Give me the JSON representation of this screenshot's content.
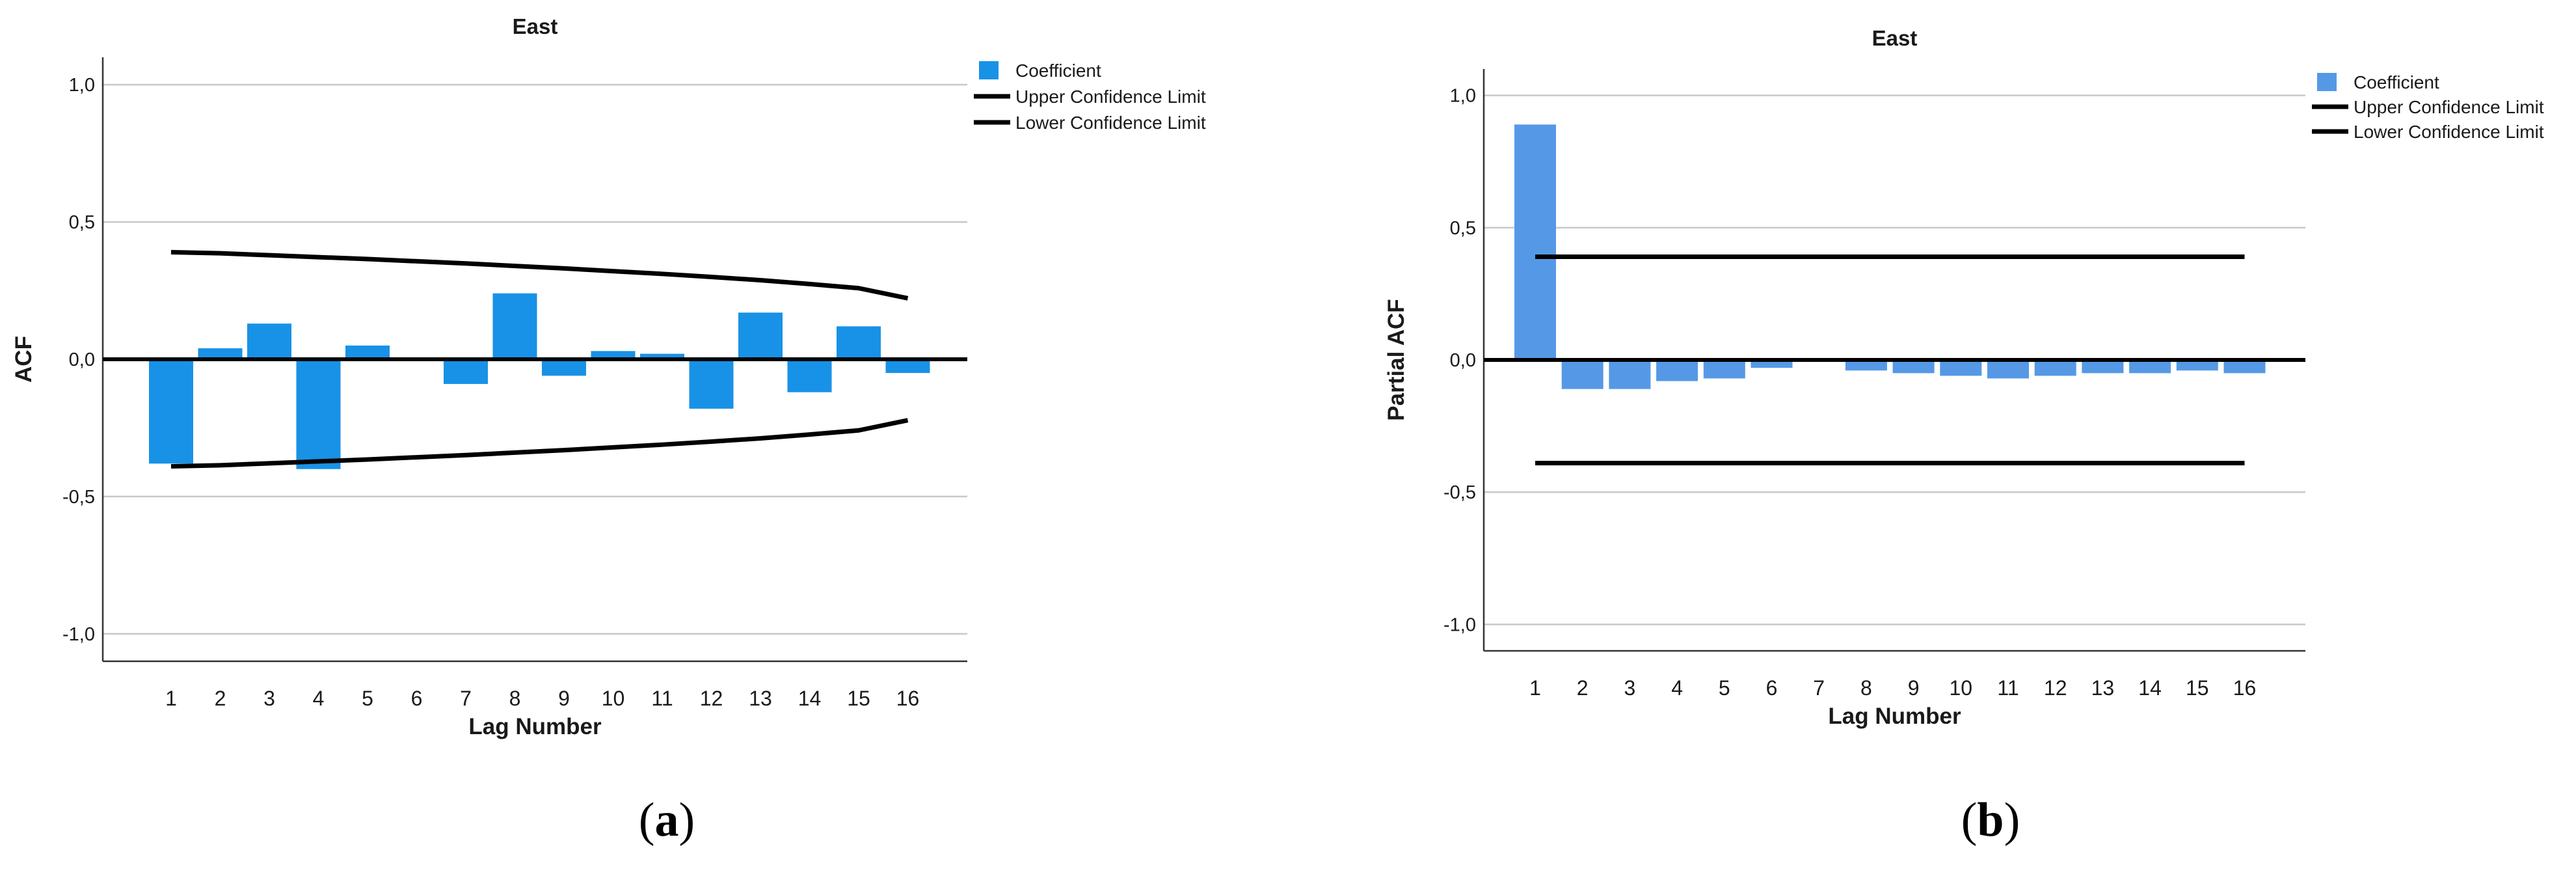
{
  "chart_data": [
    {
      "type": "bar",
      "panel": "(a)",
      "panel_letter": "a",
      "title": "East",
      "xlabel": "Lag Number",
      "ylabel": "ACF",
      "ylim": [
        -1.1,
        1.1
      ],
      "yticks": [
        -1.0,
        -0.5,
        0.0,
        0.5,
        1.0
      ],
      "ytick_labels": [
        "-1,0",
        "-0,5",
        "0,0",
        "0,5",
        "1,0"
      ],
      "categories": [
        "1",
        "2",
        "3",
        "4",
        "5",
        "6",
        "7",
        "8",
        "9",
        "10",
        "11",
        "12",
        "13",
        "14",
        "15",
        "16"
      ],
      "grid": true,
      "bar_color": "#1892e6",
      "line_color": "#000000",
      "legend_position": "top-right",
      "legend": [
        "Coefficient",
        "Upper Confidence Limit",
        "Lower Confidence Limit"
      ],
      "series": [
        {
          "name": "Coefficient",
          "values": [
            -0.38,
            0.04,
            0.13,
            -0.4,
            0.05,
            0.0,
            -0.09,
            0.24,
            -0.06,
            0.03,
            0.02,
            -0.18,
            0.17,
            -0.12,
            0.12,
            -0.05
          ]
        },
        {
          "name": "Upper Confidence Limit",
          "values": [
            0.39,
            0.386,
            0.379,
            0.372,
            0.365,
            0.357,
            0.349,
            0.34,
            0.331,
            0.321,
            0.311,
            0.3,
            0.288,
            0.274,
            0.259,
            0.222
          ]
        },
        {
          "name": "Lower Confidence Limit",
          "values": [
            -0.39,
            -0.386,
            -0.379,
            -0.372,
            -0.365,
            -0.357,
            -0.349,
            -0.34,
            -0.331,
            -0.321,
            -0.311,
            -0.3,
            -0.288,
            -0.274,
            -0.259,
            -0.222
          ]
        }
      ]
    },
    {
      "type": "bar",
      "panel": "(b)",
      "panel_letter": "b",
      "title": "East",
      "xlabel": "Lag Number",
      "ylabel": "Partial ACF",
      "ylim": [
        -1.1,
        1.1
      ],
      "yticks": [
        -1.0,
        -0.5,
        0.0,
        0.5,
        1.0
      ],
      "ytick_labels": [
        "-1,0",
        "-0,5",
        "0,0",
        "0,5",
        "1,0"
      ],
      "categories": [
        "1",
        "2",
        "3",
        "4",
        "5",
        "6",
        "7",
        "8",
        "9",
        "10",
        "11",
        "12",
        "13",
        "14",
        "15",
        "16"
      ],
      "grid": true,
      "bar_color": "#5599e6",
      "line_color": "#000000",
      "legend_position": "top-right",
      "legend": [
        "Coefficient",
        "Upper Confidence Limit",
        "Lower Confidence Limit"
      ],
      "series": [
        {
          "name": "Coefficient",
          "values": [
            0.89,
            -0.11,
            -0.11,
            -0.08,
            -0.07,
            -0.03,
            0.0,
            -0.04,
            -0.05,
            -0.06,
            -0.07,
            -0.06,
            -0.05,
            -0.05,
            -0.04,
            -0.05
          ]
        },
        {
          "name": "Upper Confidence Limit",
          "values": [
            0.39,
            0.39,
            0.39,
            0.39,
            0.39,
            0.39,
            0.39,
            0.39,
            0.39,
            0.39,
            0.39,
            0.39,
            0.39,
            0.39,
            0.39,
            0.39
          ]
        },
        {
          "name": "Lower Confidence Limit",
          "values": [
            -0.39,
            -0.39,
            -0.39,
            -0.39,
            -0.39,
            -0.39,
            -0.39,
            -0.39,
            -0.39,
            -0.39,
            -0.39,
            -0.39,
            -0.39,
            -0.39,
            -0.39,
            -0.39
          ]
        }
      ]
    }
  ]
}
